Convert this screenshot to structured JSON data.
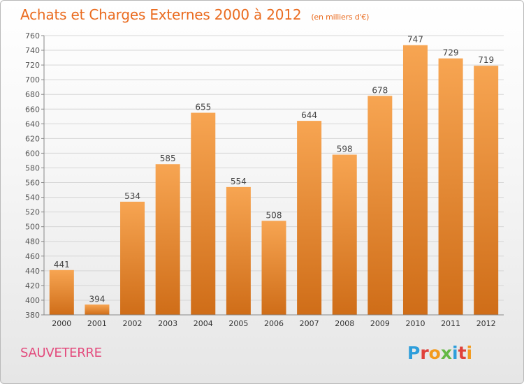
{
  "header": {
    "title": "Achats et Charges Externes 2000 à 2012",
    "unit": "(en milliers d'€)"
  },
  "footer": {
    "place": "SAUVETERRE",
    "logo": [
      "P",
      "r",
      "o",
      "x",
      "i",
      "t",
      "i"
    ]
  },
  "colors": {
    "title": "#ea6b1f",
    "bar_top": "#f7a552",
    "bar_bottom": "#cf6d18",
    "place": "#e34b7d"
  },
  "chart_data": {
    "type": "bar",
    "categories": [
      "2000",
      "2001",
      "2002",
      "2003",
      "2004",
      "2005",
      "2006",
      "2007",
      "2008",
      "2009",
      "2010",
      "2011",
      "2012"
    ],
    "values": [
      441,
      394,
      534,
      585,
      655,
      554,
      508,
      644,
      598,
      678,
      747,
      729,
      719
    ],
    "data_labels": [
      "441",
      "394",
      "534",
      "585",
      "655",
      "554",
      "508",
      "644",
      "598",
      "678",
      "747",
      "729",
      "719"
    ],
    "ylim": [
      380,
      760
    ],
    "yticks": [
      "380",
      "400",
      "420",
      "440",
      "460",
      "480",
      "500",
      "520",
      "540",
      "560",
      "580",
      "600",
      "620",
      "640",
      "660",
      "680",
      "700",
      "720",
      "740",
      "760"
    ],
    "grid": true,
    "legend": "none"
  }
}
